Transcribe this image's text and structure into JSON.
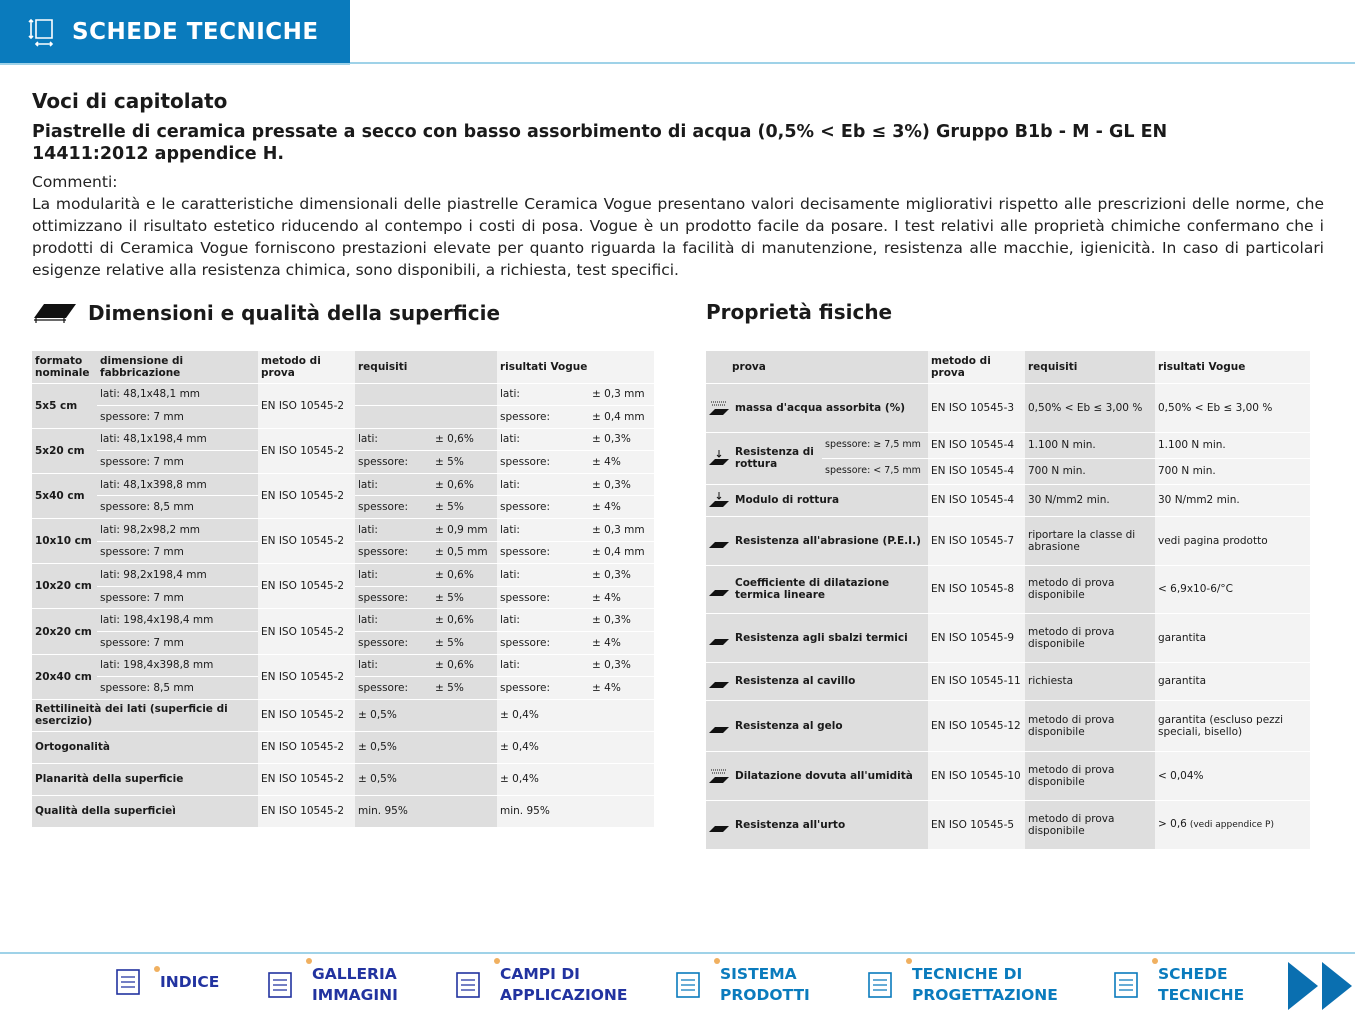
{
  "header": {
    "title": "SCHEDE TECNICHE",
    "icon": "dimensions-icon",
    "color": "#0a7bbd"
  },
  "intro": {
    "title": "Voci di capitolato",
    "subtitle": "Piastrelle di ceramica pressate a secco con basso assorbimento di acqua (0,5% < Eb ≤ 3%) Gruppo B1b - M - GL EN 14411:2012 appendice H.",
    "comment_label": "Commenti:",
    "comment": "La modularità e le caratteristiche dimensionali delle piastrelle Ceramica Vogue presentano valori decisamente migliorativi rispetto alle prescrizioni delle norme, che ottimizzano il risultato estetico riducendo al contempo i costi di posa. Vogue è un prodotto facile da posare. I test relativi alle proprietà chimiche confermano che i prodotti di Ceramica Vogue forniscono prestazioni elevate per quanto riguarda la facilità di manutenzione, resistenza alle macchie, igienicità. In caso di particolari esigenze relative alla resistenza chimica, sono disponibili, a richiesta, test specifici."
  },
  "left": {
    "title": "Dimensioni e qualità della superficie",
    "headers": [
      "formato nominale",
      "dimensione di fabbricazione",
      "metodo di prova",
      "requisiti",
      "risultati Vogue"
    ],
    "groups": [
      {
        "formato": "5x5 cm",
        "lati": "lati: 48,1x48,1 mm",
        "spess": "spessore: 7 mm",
        "metodo": "EN ISO 10545-2",
        "req": [
          "",
          "",
          "",
          ""
        ],
        "ris": [
          "lati:",
          "± 0,3 mm",
          "spessore:",
          "± 0,4 mm"
        ]
      },
      {
        "formato": "5x20 cm",
        "lati": "lati: 48,1x198,4 mm",
        "spess": "spessore: 7 mm",
        "metodo": "EN ISO 10545-2",
        "req": [
          "lati:",
          "± 0,6%",
          "spessore:",
          "± 5%"
        ],
        "ris": [
          "lati:",
          "± 0,3%",
          "spessore:",
          "± 4%"
        ]
      },
      {
        "formato": "5x40 cm",
        "lati": "lati: 48,1x398,8 mm",
        "spess": "spessore: 8,5 mm",
        "metodo": "EN ISO 10545-2",
        "req": [
          "lati:",
          "± 0,6%",
          "spessore:",
          "± 5%"
        ],
        "ris": [
          "lati:",
          "± 0,3%",
          "spessore:",
          "± 4%"
        ]
      },
      {
        "formato": "10x10 cm",
        "lati": "lati: 98,2x98,2 mm",
        "spess": "spessore: 7 mm",
        "metodo": "EN ISO 10545-2",
        "req": [
          "lati:",
          "± 0,9 mm",
          "spessore:",
          "± 0,5 mm"
        ],
        "ris": [
          "lati:",
          "± 0,3 mm",
          "spessore:",
          "± 0,4 mm"
        ]
      },
      {
        "formato": "10x20 cm",
        "lati": "lati: 98,2x198,4 mm",
        "spess": "spessore: 7 mm",
        "metodo": "EN ISO 10545-2",
        "req": [
          "lati:",
          "± 0,6%",
          "spessore:",
          "± 5%"
        ],
        "ris": [
          "lati:",
          "± 0,3%",
          "spessore:",
          "± 4%"
        ]
      },
      {
        "formato": "20x20 cm",
        "lati": "lati: 198,4x198,4 mm",
        "spess": "spessore: 7 mm",
        "metodo": "EN ISO 10545-2",
        "req": [
          "lati:",
          "± 0,6%",
          "spessore:",
          "± 5%"
        ],
        "ris": [
          "lati:",
          "± 0,3%",
          "spessore:",
          "± 4%"
        ]
      },
      {
        "formato": "20x40 cm",
        "lati": "lati: 198,4x398,8 mm",
        "spess": "spessore: 8,5 mm",
        "metodo": "EN ISO 10545-2",
        "req": [
          "lati:",
          "± 0,6%",
          "spessore:",
          "± 5%"
        ],
        "ris": [
          "lati:",
          "± 0,3%",
          "spessore:",
          "± 4%"
        ]
      }
    ],
    "extra": [
      {
        "label": "Rettilineità dei lati (superficie di esercizio)",
        "metodo": "EN ISO 10545-2",
        "req": "± 0,5%",
        "ris": "± 0,4%"
      },
      {
        "label": "Ortogonalità",
        "metodo": "EN ISO 10545-2",
        "req": "± 0,5%",
        "ris": "± 0,4%"
      },
      {
        "label": "Planarità della superficie",
        "metodo": "EN ISO 10545-2",
        "req": "± 0,5%",
        "ris": "± 0,4%"
      },
      {
        "label": "Qualità della superficieì",
        "metodo": "EN ISO 10545-2",
        "req": "min. 95%",
        "ris": "min. 95%"
      }
    ]
  },
  "right": {
    "title": "Proprietà fisiche",
    "headers": [
      "prova",
      "metodo di prova",
      "requisiti",
      "risultati Vogue"
    ],
    "rows": [
      {
        "icon": "water-absorption-icon",
        "label": "massa d'acqua assorbita (%)",
        "metodo": "EN ISO 10545-3",
        "req": "0,50% < Eb ≤ 3,00 %",
        "ris": "0,50% < Eb ≤ 3,00 %",
        "h": 49
      },
      {
        "icon": "breaking-strength-icon",
        "label": "Resistenza di rottura",
        "sub": [
          "spessore: ≥ 7,5 mm",
          "spessore: < 7,5 mm"
        ],
        "metodo": [
          "EN ISO 10545-4",
          "EN ISO 10545-4"
        ],
        "req": [
          "1.100 N min.",
          "700 N min."
        ],
        "ris": [
          "1.100 N min.",
          "700 N min."
        ]
      },
      {
        "icon": "modulus-icon",
        "label": "Modulo di rottura",
        "metodo": "EN ISO 10545-4",
        "req": "30 N/mm2 min.",
        "ris": "30 N/mm2 min.",
        "h": 32
      },
      {
        "icon": "pei-abrasion-icon",
        "label": "Resistenza all'abrasione (P.E.I.)",
        "metodo": "EN ISO 10545-7",
        "req": "riportare la classe di abrasione",
        "ris": "vedi pagina prodotto",
        "h": 49
      },
      {
        "icon": "thermal-expansion-icon",
        "label": "Coefficiente di dilatazione termica lineare",
        "metodo": "EN ISO 10545-8",
        "req": "metodo di prova disponibile",
        "ris": "< 6,9x10-6/°C",
        "h": 48
      },
      {
        "icon": "thermal-shock-icon",
        "label": "Resistenza agli sbalzi termici",
        "metodo": "EN ISO 10545-9",
        "req": "metodo di prova disponibile",
        "ris": "garantita",
        "h": 49
      },
      {
        "icon": "crazing-icon",
        "label": "Resistenza al cavillo",
        "metodo": "EN ISO 10545-11",
        "req": "richiesta",
        "ris": "garantita",
        "h": 38
      },
      {
        "icon": "frost-icon",
        "label": "Resistenza al gelo",
        "metodo": "EN ISO 10545-12",
        "req": "metodo di prova disponibile",
        "ris": "garantita (escluso pezzi speciali, bisello)",
        "h": 51
      },
      {
        "icon": "moisture-expansion-icon",
        "label": "Dilatazione dovuta all'umidità",
        "metodo": "EN ISO 10545-10",
        "req": "metodo di prova disponibile",
        "ris": "< 0,04%",
        "h": 49
      },
      {
        "icon": "impact-icon",
        "label": "Resistenza all'urto",
        "metodo": "EN ISO 10545-5",
        "req": "metodo di prova disponibile",
        "ris": "> 0,6",
        "ris_note": "(vedi appendice P)",
        "h": 49
      }
    ]
  },
  "footer": {
    "items": [
      {
        "label": "INDICE",
        "icon": "bookmark-list-icon"
      },
      {
        "label": "GALLERIA IMMAGINI",
        "icon": "camera-icon"
      },
      {
        "label": "CAMPI DI APPLICAZIONE",
        "icon": "checklist-icon"
      },
      {
        "label": "SISTEMA PRODOTTI",
        "icon": "tiles-icon"
      },
      {
        "label": "TECNICHE DI PROGETTAZIONE",
        "icon": "drafting-tools-icon"
      },
      {
        "label": "SCHEDE TECNICHE",
        "icon": "dimensions-icon"
      }
    ],
    "next": "next-page-icon"
  }
}
